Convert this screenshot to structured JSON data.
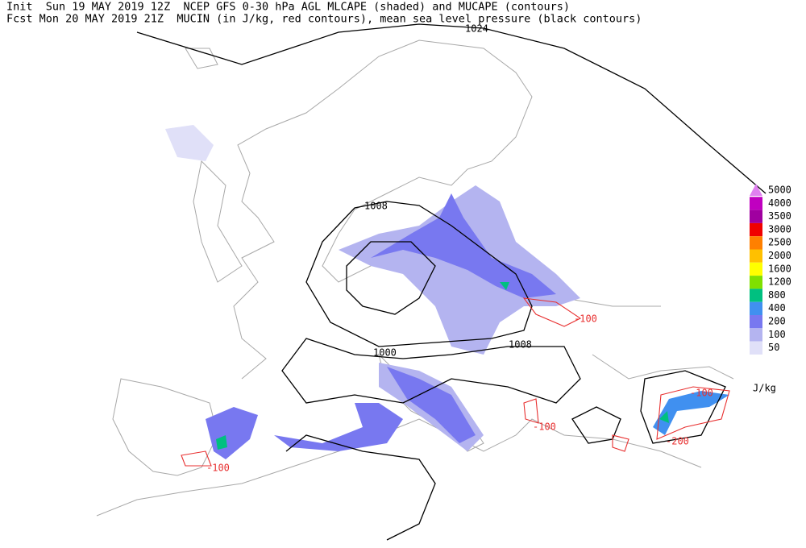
{
  "header": {
    "line1": "Init  Sun 19 MAY 2019 12Z  NCEP GFS 0-30 hPa AGL MLCAPE (shaded) and MUCAPE (contours)",
    "line2": "Fcst Mon 20 MAY 2019 21Z  MUCIN (in J/kg, red contours), mean sea level pressure (black contours)"
  },
  "isobar_labels": [
    1024,
    1008,
    1008,
    1000
  ],
  "cin_labels": [
    -100,
    -100,
    -100,
    -200,
    -100
  ],
  "legend": {
    "levels": [
      5000,
      4000,
      3500,
      3000,
      2500,
      2000,
      1600,
      1200,
      800,
      400,
      200,
      100,
      50
    ],
    "colors": [
      "#e080f0",
      "#c000c0",
      "#a000a0",
      "#f00000",
      "#ff8000",
      "#ffc000",
      "#ffff00",
      "#80e000",
      "#00c080",
      "#4090f0",
      "#7878f0",
      "#b4b4f0",
      "#e0e0f8"
    ],
    "unit": "J/kg"
  }
}
